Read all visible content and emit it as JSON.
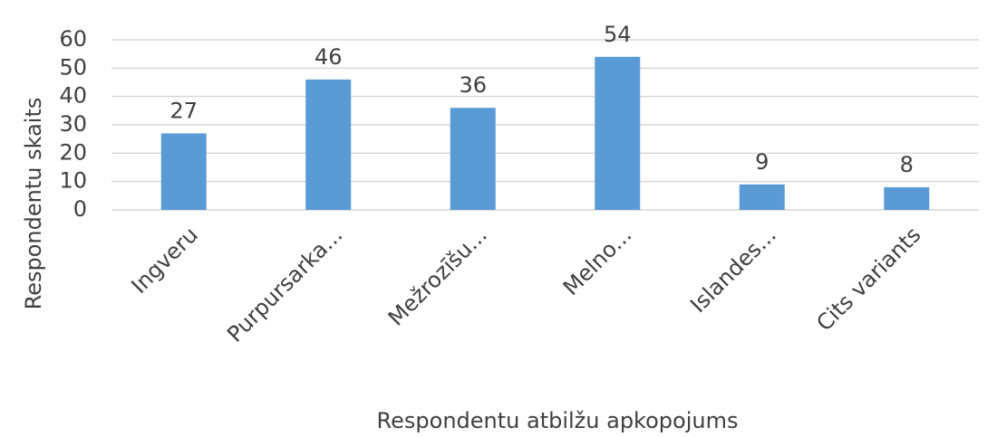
{
  "chart_data": {
    "type": "bar",
    "categories": [
      "Ingveru",
      "Purpursarka...",
      "Mežrozīšu...",
      "Melno...",
      "Islandes...",
      "Cits variants"
    ],
    "values": [
      27,
      46,
      36,
      54,
      9,
      8
    ],
    "color": "#5b9bd5",
    "ylim": [
      0,
      60
    ],
    "yticks": [
      0,
      10,
      20,
      30,
      40,
      50,
      60
    ],
    "grid": true,
    "y_label": "Respondentu skaits",
    "x_label": "Respondentu atbilžu apkopojums"
  }
}
